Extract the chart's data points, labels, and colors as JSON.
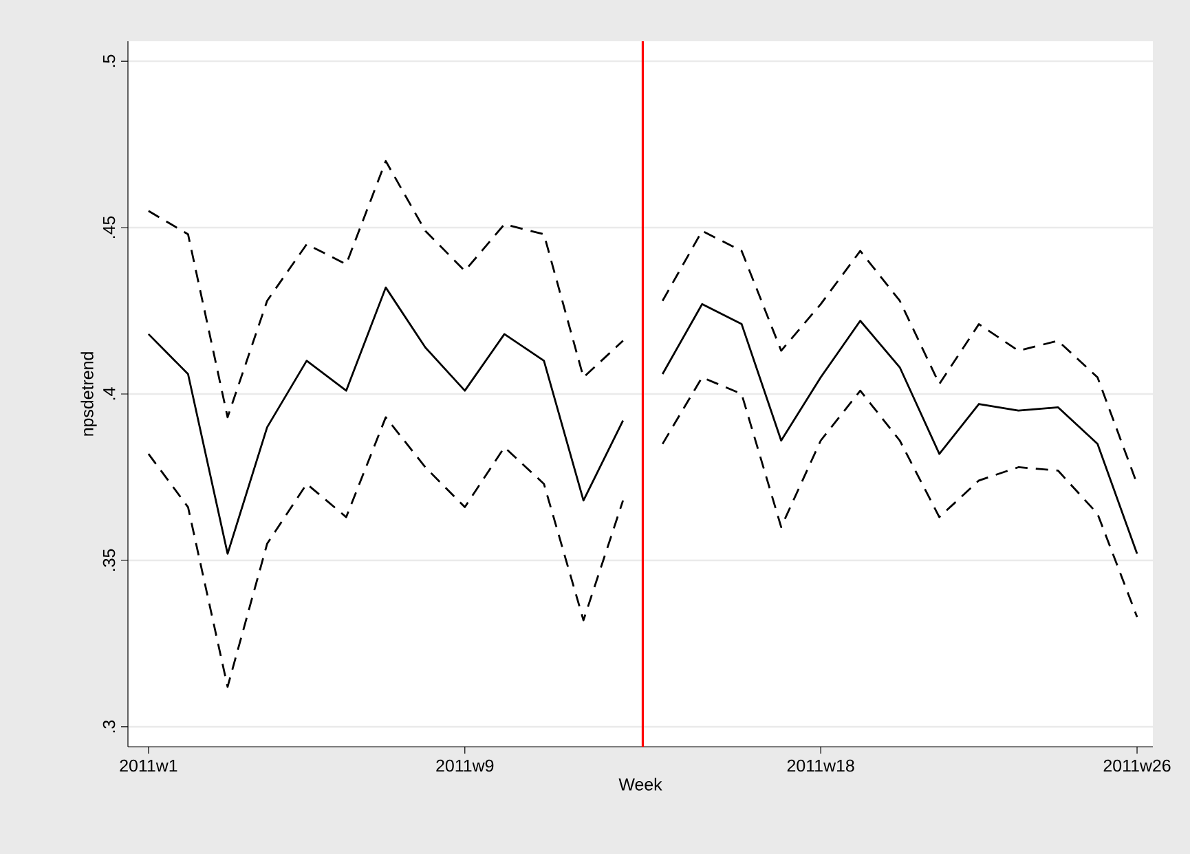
{
  "chart_data": {
    "type": "line",
    "xlabel": "Week",
    "ylabel": "npsdetrend",
    "categories": [
      "2011w1",
      null,
      null,
      null,
      null,
      null,
      null,
      null,
      "2011w9",
      null,
      null,
      null,
      null,
      null,
      null,
      null,
      null,
      "2011w18",
      null,
      null,
      null,
      null,
      null,
      null,
      null,
      "2011w26"
    ],
    "ylim": [
      0.294,
      0.506
    ],
    "yticks": [
      {
        "value": 0.3,
        "label": ".3"
      },
      {
        "value": 0.35,
        "label": ".35"
      },
      {
        "value": 0.4,
        "label": ".4"
      },
      {
        "value": 0.45,
        "label": ".45"
      },
      {
        "value": 0.5,
        "label": ".5"
      }
    ],
    "grid": "y",
    "legend": false,
    "marker": "none",
    "series": [
      {
        "color": "#000000",
        "line_style": "solid",
        "values": [
          0.418,
          0.406,
          0.352,
          0.39,
          0.41,
          0.401,
          0.432,
          0.414,
          0.401,
          0.418,
          0.41,
          0.368,
          0.392,
          null,
          null,
          null,
          null,
          null,
          null,
          null,
          null,
          null,
          null,
          null,
          null,
          null
        ]
      },
      {
        "color": "#000000",
        "line_style": "dashed",
        "values": [
          0.455,
          0.448,
          0.393,
          0.428,
          0.445,
          0.439,
          0.47,
          0.449,
          0.437,
          0.451,
          0.448,
          0.405,
          0.416,
          null,
          null,
          null,
          null,
          null,
          null,
          null,
          null,
          null,
          null,
          null,
          null,
          null
        ]
      },
      {
        "color": "#000000",
        "line_style": "dashed",
        "values": [
          0.382,
          0.366,
          0.312,
          0.355,
          0.373,
          0.363,
          0.393,
          0.378,
          0.366,
          0.384,
          0.373,
          0.332,
          0.368,
          null,
          null,
          null,
          null,
          null,
          null,
          null,
          null,
          null,
          null,
          null,
          null,
          null
        ]
      },
      {
        "color": "#000000",
        "line_style": "solid",
        "values": [
          null,
          null,
          null,
          null,
          null,
          null,
          null,
          null,
          null,
          null,
          null,
          null,
          null,
          0.406,
          0.427,
          0.421,
          0.386,
          0.405,
          0.422,
          0.408,
          0.382,
          0.397,
          0.395,
          0.396,
          0.385,
          0.352
        ]
      },
      {
        "color": "#000000",
        "line_style": "dashed",
        "values": [
          null,
          null,
          null,
          null,
          null,
          null,
          null,
          null,
          null,
          null,
          null,
          null,
          null,
          0.428,
          0.449,
          0.443,
          0.413,
          0.427,
          0.443,
          0.428,
          0.403,
          0.421,
          0.413,
          0.416,
          0.405,
          0.373
        ]
      },
      {
        "color": "#000000",
        "line_style": "dashed",
        "values": [
          null,
          null,
          null,
          null,
          null,
          null,
          null,
          null,
          null,
          null,
          null,
          null,
          null,
          0.385,
          0.405,
          0.4,
          0.36,
          0.386,
          0.401,
          0.386,
          0.363,
          0.374,
          0.378,
          0.377,
          0.364,
          0.333
        ]
      }
    ]
  }
}
